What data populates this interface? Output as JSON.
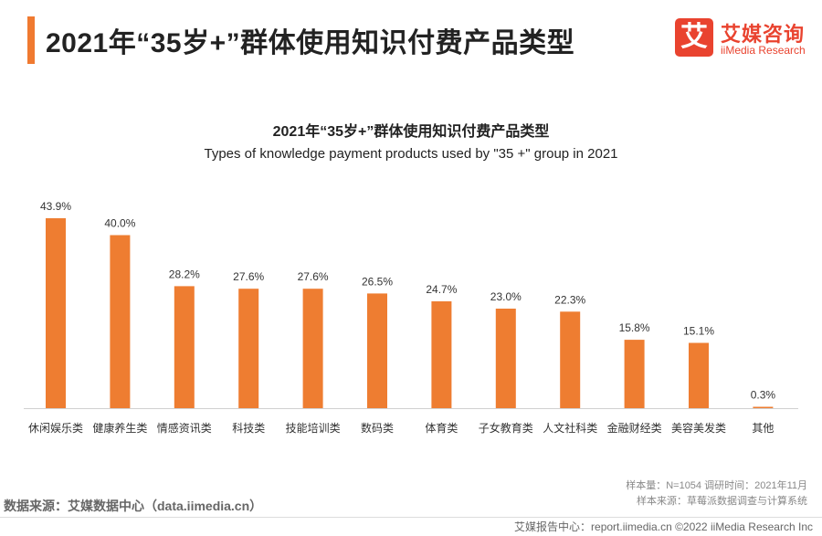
{
  "header": {
    "title": "2021年“35岁+”群体使用知识付费产品类型",
    "logo_glyph": "艾",
    "logo_cn": "艾媒咨询",
    "logo_en": "iiMedia Research"
  },
  "chart_data": {
    "type": "bar",
    "title": "2021年“35岁+”群体使用知识付费产品类型",
    "subtitle": "Types of knowledge payment products used by \"35 +\" group in 2021",
    "categories": [
      "休闲娱乐类",
      "健康养生类",
      "情感资讯类",
      "科技类",
      "技能培训类",
      "数码类",
      "体育类",
      "子女教育类",
      "人文社科类",
      "金融财经类",
      "美容美发类",
      "其他"
    ],
    "values": [
      43.9,
      40.0,
      28.2,
      27.6,
      27.6,
      26.5,
      24.7,
      23.0,
      22.3,
      15.8,
      15.1,
      0.3
    ],
    "value_labels": [
      "43.9%",
      "40.0%",
      "28.2%",
      "27.6%",
      "27.6%",
      "26.5%",
      "24.7%",
      "23.0%",
      "22.3%",
      "15.8%",
      "15.1%",
      "0.3%"
    ],
    "bar_color": "#ee7d31",
    "ylim": [
      0,
      45
    ],
    "grid": false,
    "xlabel": "",
    "ylabel": ""
  },
  "notes": {
    "sample": "样本量：N=1054    调研时间：2021年11月",
    "sample_source": "样本来源：草莓派数据调查与计算系统"
  },
  "source": "数据来源：艾媒数据中心（data.iimedia.cn）",
  "footer": "艾媒报告中心：report.iimedia.cn  ©2022  iiMedia Research Inc",
  "colors": {
    "accent": "#f07a30",
    "brand": "#e9432f"
  }
}
